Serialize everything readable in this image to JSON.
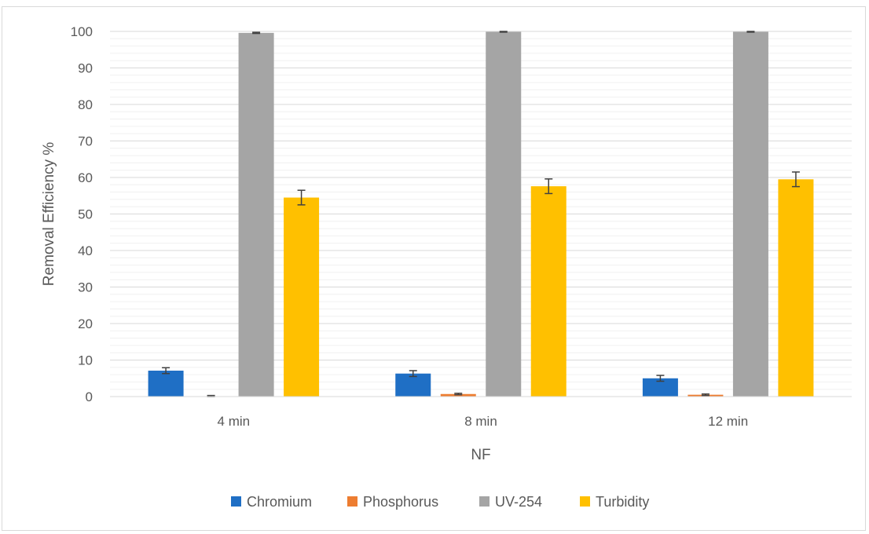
{
  "chart_data": {
    "type": "bar",
    "categories": [
      "4 min",
      "8 min",
      "12 min"
    ],
    "xlabel": "NF",
    "ylabel": "Removal Efficiency %",
    "ylim": [
      0,
      100
    ],
    "y_ticks": [
      0,
      10,
      20,
      30,
      40,
      50,
      60,
      70,
      80,
      90,
      100
    ],
    "y_major_step": 10,
    "y_minor_step": 2,
    "grid": true,
    "legend_position": "bottom",
    "series": [
      {
        "name": "Chromium",
        "color": "#1f6fc5",
        "values": [
          7.1,
          6.3,
          5.0
        ],
        "errors": [
          0.8,
          0.8,
          0.8
        ]
      },
      {
        "name": "Phosphorus",
        "color": "#ed7d31",
        "values": [
          0.1,
          0.7,
          0.5
        ],
        "errors": [
          0.2,
          0.2,
          0.2
        ]
      },
      {
        "name": "UV-254",
        "color": "#a5a5a5",
        "values": [
          99.6,
          99.9,
          99.9
        ],
        "errors": [
          0.15,
          0.1,
          0.1
        ]
      },
      {
        "name": "Turbidity",
        "color": "#ffc000",
        "values": [
          54.5,
          57.6,
          59.5
        ],
        "errors": [
          2.0,
          2.0,
          2.0
        ]
      }
    ]
  }
}
